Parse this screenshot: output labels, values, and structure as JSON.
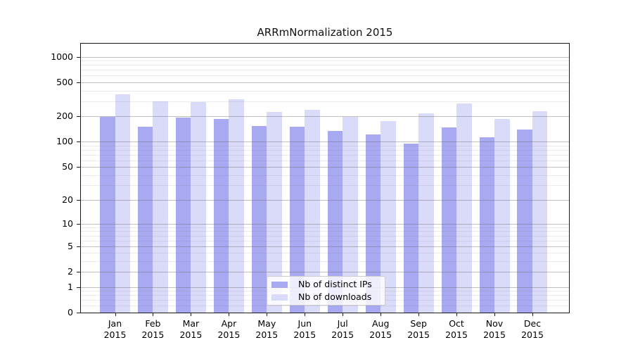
{
  "title": "ARRmNormalization 2015",
  "chart_data": {
    "type": "bar",
    "title": "ARRmNormalization 2015",
    "categories": [
      "Jan 2015",
      "Feb 2015",
      "Mar 2015",
      "Apr 2015",
      "May 2015",
      "Jun 2015",
      "Jul 2015",
      "Aug 2015",
      "Sep 2015",
      "Oct 2015",
      "Nov 2015",
      "Dec 2015"
    ],
    "series": [
      {
        "name": "Nb of distinct IPs",
        "color": "#a9a9f1",
        "values": [
          197,
          149,
          192,
          186,
          153,
          151,
          133,
          121,
          94,
          147,
          112,
          139
        ]
      },
      {
        "name": "Nb of downloads",
        "color": "#dadaf9",
        "values": [
          363,
          299,
          295,
          316,
          224,
          237,
          196,
          175,
          217,
          283,
          186,
          230
        ]
      }
    ],
    "xlabel": "",
    "ylabel": "",
    "yscale": "symlog",
    "yticks": [
      0,
      1,
      2,
      5,
      10,
      20,
      50,
      100,
      200,
      500,
      1000
    ],
    "ylim": [
      0,
      1450
    ],
    "grid": true,
    "legend_position": "lower center",
    "colors": {
      "grid_major": "#bdbdbd",
      "grid_minor": "#e9e9e9",
      "axis": "#1a1a1a",
      "background": "#ffffff"
    }
  }
}
